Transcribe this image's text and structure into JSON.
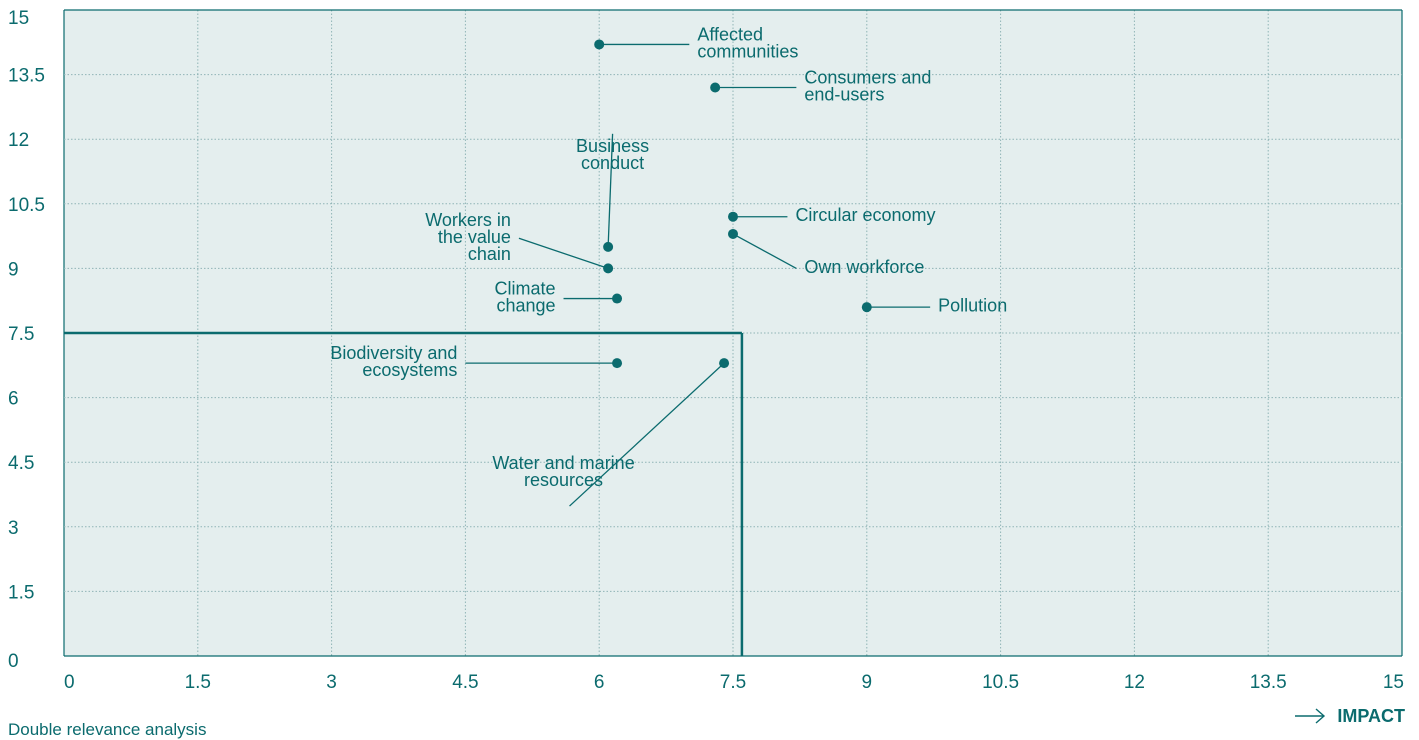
{
  "caption": "Double relevance analysis",
  "x_axis_title": "IMPACT",
  "colors": {
    "accent": "#0b6b6e",
    "plot_bg": "#e4eeee",
    "grid": "#8fb4b6"
  },
  "chart_data": {
    "type": "scatter",
    "title": "",
    "xlabel": "IMPACT",
    "ylabel": "",
    "xlim": [
      0,
      15
    ],
    "ylim": [
      0,
      15
    ],
    "xticks": [
      "0",
      "1.5",
      "3",
      "4.5",
      "6",
      "7.5",
      "9",
      "10.5",
      "12",
      "13.5",
      "15"
    ],
    "yticks": [
      "0",
      "1.5",
      "3",
      "4.5",
      "6",
      "7.5",
      "9",
      "10.5",
      "12",
      "13.5",
      "15"
    ],
    "grid": true,
    "threshold": {
      "x": 7.6,
      "y": 7.5
    },
    "points": [
      {
        "name": "Affected communities",
        "lines": [
          "Affected",
          "communities"
        ],
        "x": 6.0,
        "y": 14.2,
        "lx": 7.1,
        "ly": 14.2,
        "anchor": "start"
      },
      {
        "name": "Consumers and end-users",
        "lines": [
          "Consumers and",
          "end-users"
        ],
        "x": 7.3,
        "y": 13.2,
        "lx": 8.3,
        "ly": 13.2,
        "anchor": "start"
      },
      {
        "name": "Business conduct",
        "lines": [
          "Business",
          "conduct"
        ],
        "x": 6.1,
        "y": 9.5,
        "lx": 6.15,
        "ly": 11.8,
        "anchor": "middle"
      },
      {
        "name": "Workers in the value chain",
        "lines": [
          "Workers in",
          "the value",
          "chain"
        ],
        "x": 6.1,
        "y": 9.0,
        "lx": 5.1,
        "ly": 9.7,
        "anchor": "end"
      },
      {
        "name": "Circular economy",
        "lines": [
          "Circular economy"
        ],
        "x": 7.5,
        "y": 10.2,
        "lx": 8.2,
        "ly": 10.2,
        "anchor": "start"
      },
      {
        "name": "Own workforce",
        "lines": [
          "Own workforce"
        ],
        "x": 7.5,
        "y": 9.8,
        "lx": 8.3,
        "ly": 9.0,
        "anchor": "start"
      },
      {
        "name": "Climate change",
        "lines": [
          "Climate",
          "change"
        ],
        "x": 6.2,
        "y": 8.3,
        "lx": 5.6,
        "ly": 8.3,
        "anchor": "end"
      },
      {
        "name": "Pollution",
        "lines": [
          "Pollution"
        ],
        "x": 9.0,
        "y": 8.1,
        "lx": 9.8,
        "ly": 8.1,
        "anchor": "start"
      },
      {
        "name": "Biodiversity and ecosystems",
        "lines": [
          "Biodiversity and",
          "ecosystems"
        ],
        "x": 6.2,
        "y": 6.8,
        "lx": 4.5,
        "ly": 6.8,
        "anchor": "end"
      },
      {
        "name": "Water and marine resources",
        "lines": [
          "Water and marine",
          "resources"
        ],
        "x": 7.4,
        "y": 6.8,
        "lx": 5.6,
        "ly": 3.9,
        "anchor": "middle"
      }
    ]
  }
}
